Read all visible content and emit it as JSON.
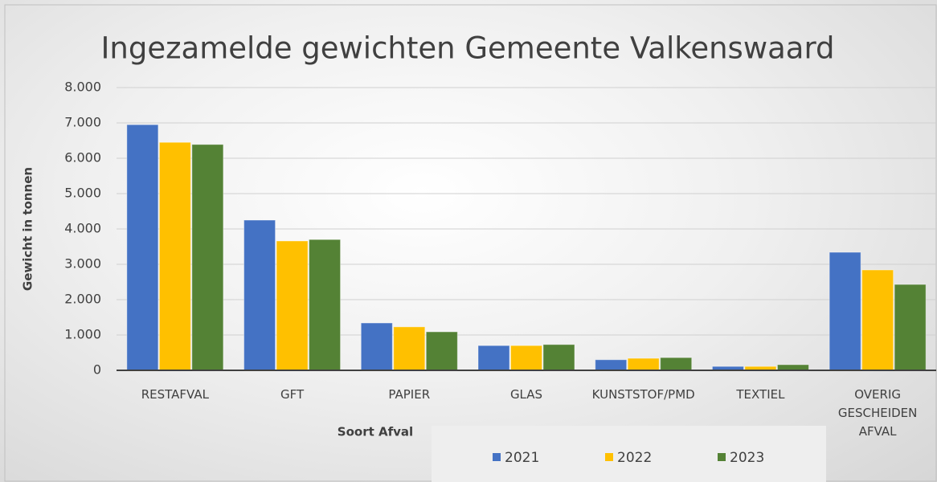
{
  "chart_data": {
    "type": "bar",
    "title": "Ingezamelde gewichten Gemeente Valkenswaard",
    "y_label": "Gewicht in tonnen",
    "x_label": "Soort Afval",
    "categories": [
      "RESTAFVAL",
      "GFT",
      "PAPIER",
      "GLAS",
      "KUNSTSTOF/PMD",
      "TEXTIEL",
      "OVERIG GESCHEIDEN AFVAL"
    ],
    "series": [
      {
        "name": "2021",
        "color": "#4472c4",
        "values": [
          6950,
          4250,
          1340,
          700,
          300,
          110,
          3340
        ]
      },
      {
        "name": "2022",
        "color": "#ffc000",
        "values": [
          6450,
          3660,
          1230,
          700,
          340,
          110,
          2840
        ]
      },
      {
        "name": "2023",
        "color": "#548235",
        "values": [
          6390,
          3700,
          1090,
          730,
          360,
          160,
          2430
        ]
      }
    ],
    "ylim": [
      0,
      8000
    ],
    "yticks": [
      0,
      {
        "value": 1000,
        "label": "1.000"
      },
      {
        "value": 2000,
        "label": "2.000"
      },
      {
        "value": 3000,
        "label": "3.000"
      },
      {
        "value": 4000,
        "label": "4.000"
      },
      {
        "value": 5000,
        "label": "5.000"
      },
      {
        "value": 6000,
        "label": "6.000"
      },
      {
        "value": 7000,
        "label": "7.000"
      },
      {
        "value": 8000,
        "label": "8.000"
      }
    ],
    "grid": true,
    "legend": "bottom"
  }
}
